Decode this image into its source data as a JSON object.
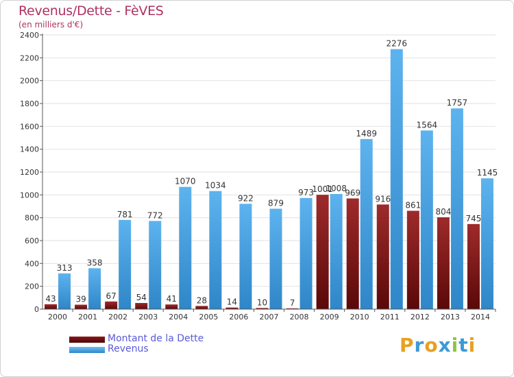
{
  "title": "Revenus/Dette - FèVES",
  "subtitle": "(en milliers d'€)",
  "chart_data": {
    "type": "bar",
    "title": "Revenus/Dette - FèVES",
    "subtitle": "(en milliers d'€)",
    "categories": [
      "2000",
      "2001",
      "2002",
      "2003",
      "2004",
      "2005",
      "2006",
      "2007",
      "2008",
      "2009",
      "2010",
      "2011",
      "2012",
      "2013",
      "2014"
    ],
    "series": [
      {
        "name": "Montant de la Dette",
        "color": "#8b1a1a",
        "values": [
          43,
          39,
          67,
          54,
          41,
          28,
          14,
          10,
          7,
          1001,
          969,
          916,
          861,
          804,
          745
        ]
      },
      {
        "name": "Revenus",
        "color": "#4ea8e8",
        "values": [
          313,
          358,
          781,
          772,
          1070,
          1034,
          922,
          879,
          973,
          1008,
          1489,
          2276,
          1564,
          1757,
          1145
        ]
      }
    ],
    "ylim": [
      0,
      2400
    ],
    "yticks": [
      0,
      200,
      400,
      600,
      800,
      1000,
      1200,
      1400,
      1600,
      1800,
      2000,
      2200,
      2400
    ],
    "grid": true,
    "legend": "bottom-left"
  },
  "legend": {
    "items": [
      {
        "label": "Montant de la Dette",
        "color": "#6b0f0f"
      },
      {
        "label": "Revenus",
        "color": "#4ea8e8"
      }
    ]
  },
  "logo": {
    "letters": [
      "P",
      "r",
      "o",
      "x",
      "i",
      "t",
      "i"
    ],
    "colors": [
      "#e8a020",
      "#3b9ad8",
      "#e8a020",
      "#3b9ad8",
      "#8cc63f",
      "#3b9ad8",
      "#e8a020"
    ]
  }
}
